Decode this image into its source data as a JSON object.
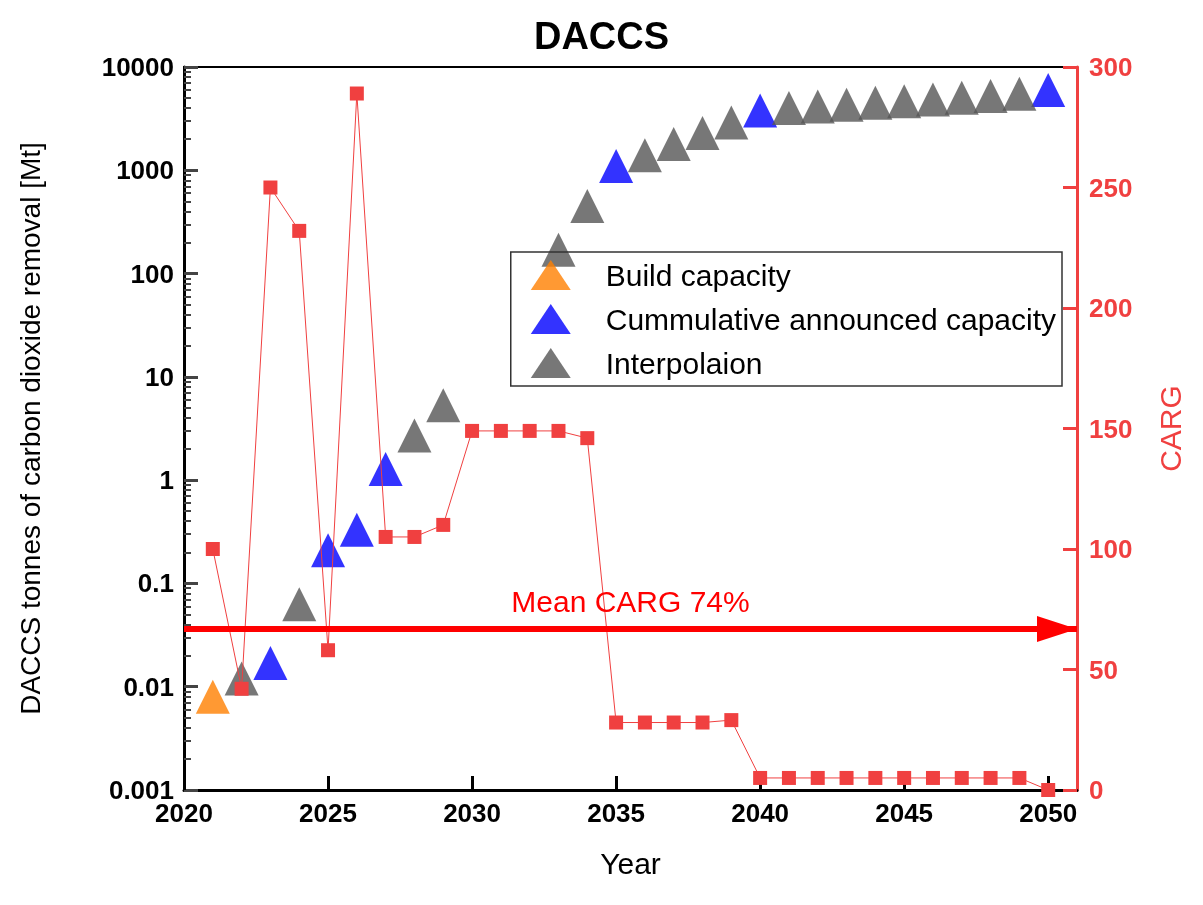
{
  "chart_data": {
    "type": "scatter",
    "title": "DACCS",
    "xlabel": "Year",
    "ylabel": "DACCS tonnes of carbon dioxide removal [Mt]",
    "y2label": "CARG",
    "xlim": [
      2020,
      2051
    ],
    "xticks": [
      2020,
      2025,
      2030,
      2035,
      2040,
      2045,
      2050
    ],
    "ylim": [
      0.001,
      10000
    ],
    "yticks": [
      0.001,
      0.01,
      0.1,
      1,
      10,
      100,
      1000,
      10000
    ],
    "log": "y",
    "y2lim": [
      0,
      300
    ],
    "y2ticks": [
      0,
      50,
      100,
      150,
      200,
      250,
      300
    ],
    "legend": "top right",
    "grid": false,
    "marker": "triangle",
    "series": [
      {
        "name": "Build capacity",
        "color": "#ff7f00",
        "x": [
          2021
        ],
        "values": [
          0.008
        ]
      },
      {
        "name": "Cummulative announced capacity",
        "color": "#0000ff",
        "x": [
          2023,
          2025,
          2026,
          2027,
          2035,
          2040,
          2050
        ],
        "values": [
          0.017,
          0.21,
          0.33,
          1.28,
          1100,
          3800,
          6000
        ]
      },
      {
        "name": "Interpolaion",
        "color": "#555555",
        "x": [
          2022,
          2024,
          2028,
          2029,
          2030,
          2031,
          2032,
          2033,
          2034,
          2036,
          2037,
          2038,
          2039,
          2041,
          2042,
          2043,
          2044,
          2045,
          2046,
          2047,
          2048,
          2049
        ],
        "values": [
          0.012,
          0.063,
          2.7,
          5.3,
          null,
          null,
          null,
          170,
          450,
          1400,
          1800,
          2300,
          2900,
          4000,
          4150,
          4300,
          4500,
          4650,
          4850,
          5050,
          5250,
          5500
        ]
      },
      {
        "type": "line",
        "axis": "y2",
        "color": "#f04040",
        "marker": "square",
        "line_style": "solid",
        "x": [
          2021,
          2022,
          2023,
          2024,
          2025,
          2026,
          2027,
          2028,
          2029,
          2030,
          2031,
          2032,
          2033,
          2034,
          2035,
          2036,
          2037,
          2038,
          2039,
          2040,
          2041,
          2042,
          2043,
          2044,
          2045,
          2046,
          2047,
          2048,
          2049,
          2050
        ],
        "values": [
          100,
          42,
          250,
          232,
          58,
          289,
          105,
          105,
          110,
          149,
          149,
          149,
          149,
          146,
          28,
          28,
          28,
          28,
          29,
          5,
          5,
          5,
          5,
          5,
          5,
          5,
          5,
          5,
          5,
          0
        ]
      }
    ],
    "ref_lines": [
      {
        "axis": "y2",
        "value": 67,
        "label": "Mean CARG 74%",
        "color": "#ff0000"
      }
    ]
  }
}
